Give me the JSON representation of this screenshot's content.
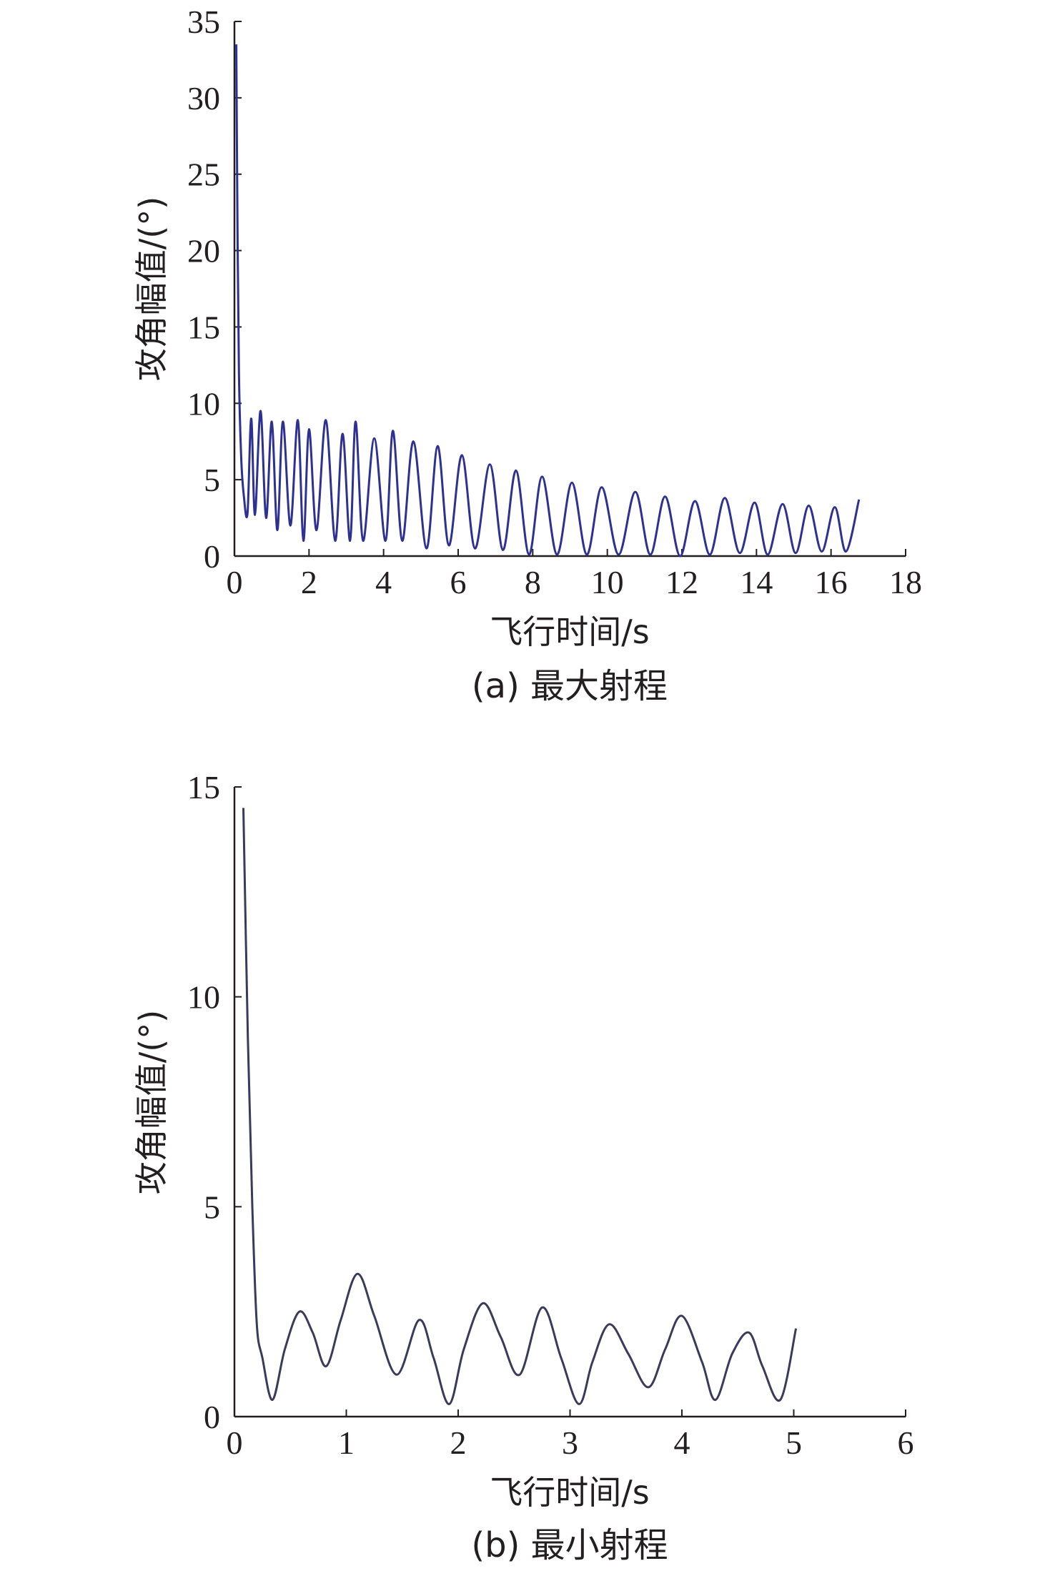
{
  "chart_data": [
    {
      "type": "line",
      "caption": "(a) 最大射程",
      "xlabel": "飞行时间/s",
      "ylabel": "攻角幅值/(°)",
      "xlim": [
        0,
        18
      ],
      "ylim": [
        0,
        35
      ],
      "xticks": [
        "0",
        "2",
        "4",
        "6",
        "8",
        "10",
        "12",
        "14",
        "16",
        "18"
      ],
      "yticks": [
        "0",
        "5",
        "10",
        "15",
        "20",
        "25",
        "30",
        "35"
      ],
      "line_color": "#2e3192",
      "series": [
        {
          "x": [
            0.05,
            0.08,
            0.12,
            0.18,
            0.25,
            0.35,
            0.45,
            0.55,
            0.7,
            0.85,
            1.0,
            1.15,
            1.3,
            1.5,
            1.7,
            1.85,
            2.0,
            2.2,
            2.45,
            2.7,
            2.9,
            3.1,
            3.25,
            3.45,
            3.75,
            4.05,
            4.25,
            4.5,
            4.8,
            5.15,
            5.45,
            5.75,
            6.1,
            6.45,
            6.85,
            7.2,
            7.55,
            7.9,
            8.25,
            8.65,
            9.05,
            9.45,
            9.85,
            10.3,
            10.75,
            11.15,
            11.55,
            11.95,
            12.35,
            12.75,
            13.15,
            13.55,
            13.95,
            14.3,
            14.7,
            15.05,
            15.4,
            15.75,
            16.1,
            16.4,
            16.75
          ],
          "y": [
            33.5,
            22.0,
            12.0,
            6.5,
            4.0,
            2.8,
            9.0,
            2.7,
            9.5,
            2.5,
            8.8,
            1.7,
            8.8,
            2.0,
            8.9,
            1.0,
            8.3,
            1.7,
            8.9,
            1.0,
            8.0,
            1.0,
            8.8,
            1.0,
            7.7,
            1.0,
            8.2,
            1.0,
            7.5,
            0.5,
            7.2,
            0.7,
            6.6,
            0.5,
            6.0,
            0.4,
            5.6,
            0.1,
            5.2,
            0.1,
            4.8,
            0.1,
            4.5,
            0.1,
            4.2,
            0.1,
            3.9,
            0.0,
            3.6,
            0.1,
            3.8,
            0.2,
            3.5,
            0.1,
            3.4,
            0.2,
            3.3,
            0.3,
            3.2,
            0.3,
            3.7
          ]
        }
      ]
    },
    {
      "type": "line",
      "caption": "(b) 最小射程",
      "xlabel": "飞行时间/s",
      "ylabel": "攻角幅值/(°)",
      "xlim": [
        0,
        6
      ],
      "ylim": [
        0,
        15
      ],
      "xticks": [
        "0",
        "1",
        "2",
        "3",
        "4",
        "5",
        "6"
      ],
      "yticks": [
        "0",
        "5",
        "10",
        "15"
      ],
      "line_color": "#3a3a5a",
      "series": [
        {
          "x": [
            0.08,
            0.12,
            0.16,
            0.2,
            0.25,
            0.34,
            0.45,
            0.58,
            0.7,
            0.82,
            0.95,
            1.1,
            1.25,
            1.45,
            1.65,
            1.78,
            1.92,
            2.05,
            2.22,
            2.38,
            2.55,
            2.75,
            2.92,
            3.08,
            3.2,
            3.35,
            3.52,
            3.7,
            3.85,
            4.0,
            4.18,
            4.3,
            4.45,
            4.6,
            4.72,
            4.88,
            5.02
          ],
          "y": [
            14.5,
            9.0,
            5.0,
            2.2,
            1.4,
            0.4,
            1.6,
            2.5,
            2.0,
            1.2,
            2.3,
            3.4,
            2.4,
            1.0,
            2.3,
            1.4,
            0.3,
            1.6,
            2.7,
            1.9,
            1.0,
            2.6,
            1.4,
            0.3,
            1.3,
            2.2,
            1.5,
            0.7,
            1.6,
            2.4,
            1.3,
            0.4,
            1.5,
            2.0,
            1.2,
            0.4,
            2.1
          ]
        }
      ]
    }
  ]
}
